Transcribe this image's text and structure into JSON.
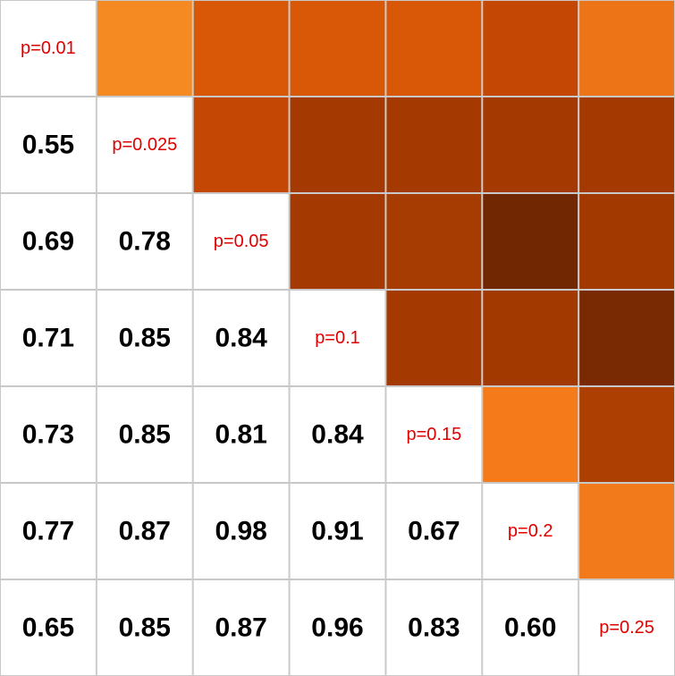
{
  "chart_data": {
    "type": "heatmap",
    "title": "",
    "xlabel": "",
    "ylabel": "",
    "categories": [
      "p=0.01",
      "p=0.025",
      "p=0.05",
      "p=0.1",
      "p=0.15",
      "p=0.2",
      "p=0.25"
    ],
    "diagonal_labels": [
      "p=0.01",
      "p=0.025",
      "p=0.05",
      "p=0.1",
      "p=0.15",
      "p=0.2",
      "p=0.25"
    ],
    "lower_triangle_values": [
      [
        null,
        null,
        null,
        null,
        null,
        null,
        null
      ],
      [
        "0.55",
        null,
        null,
        null,
        null,
        null,
        null
      ],
      [
        "0.69",
        "0.78",
        null,
        null,
        null,
        null,
        null
      ],
      [
        "0.71",
        "0.85",
        "0.84",
        null,
        null,
        null,
        null
      ],
      [
        "0.73",
        "0.85",
        "0.81",
        "0.84",
        null,
        null,
        null
      ],
      [
        "0.77",
        "0.87",
        "0.98",
        "0.91",
        "0.67",
        null,
        null
      ],
      [
        "0.65",
        "0.85",
        "0.87",
        "0.96",
        "0.83",
        "0.60",
        null
      ]
    ],
    "upper_triangle_colors": [
      [
        null,
        "#f68a22",
        "#d85808",
        "#d85808",
        "#d85808",
        "#c54704",
        "#ee7418"
      ],
      [
        null,
        null,
        "#c44804",
        "#a43a01",
        "#a43a01",
        "#a43a01",
        "#a43a01"
      ],
      [
        null,
        null,
        null,
        "#a43a01",
        "#a63c01",
        "#722703",
        "#a23901"
      ],
      [
        null,
        null,
        null,
        null,
        "#a43a01",
        "#a23901",
        "#7a2a03"
      ],
      [
        null,
        null,
        null,
        null,
        null,
        "#f47a1a",
        "#ae3f02"
      ],
      [
        null,
        null,
        null,
        null,
        null,
        null,
        "#f27a1a"
      ],
      [
        null,
        null,
        null,
        null,
        null,
        null,
        null
      ]
    ],
    "colors": {
      "grid": "#c8c8c8",
      "diagonal_text": "#e00000",
      "value_text": "#000000",
      "background": "#ffffff"
    }
  }
}
